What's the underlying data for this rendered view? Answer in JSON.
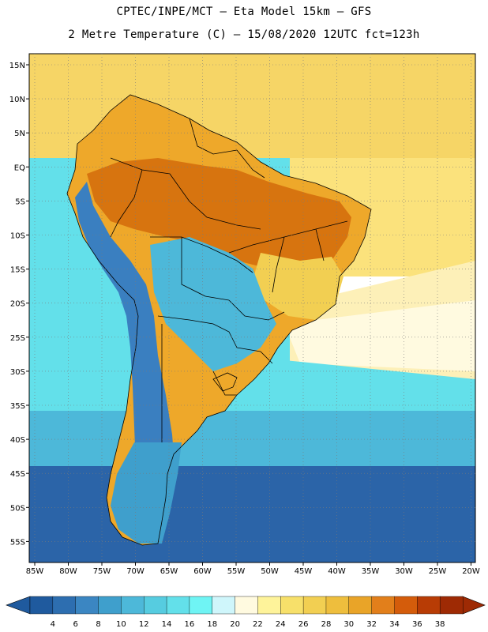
{
  "header": {
    "line1": "CPTEC/INPE/MCT –  Eta Model 15km – GFS",
    "line2": "2 Metre Temperature (C) – 15/08/2020 12UTC fct=123h"
  },
  "axes": {
    "lat_labels": [
      "15N",
      "10N",
      "5N",
      "EQ",
      "5S",
      "10S",
      "15S",
      "20S",
      "25S",
      "30S",
      "35S",
      "40S",
      "45S",
      "50S",
      "55S"
    ],
    "lon_labels": [
      "85W",
      "80W",
      "75W",
      "70W",
      "65W",
      "60W",
      "55W",
      "50W",
      "45W",
      "40W",
      "35W",
      "30W",
      "25W",
      "20W"
    ]
  },
  "colorbar": {
    "levels": [
      "4",
      "6",
      "8",
      "10",
      "12",
      "14",
      "16",
      "18",
      "20",
      "22",
      "24",
      "26",
      "28",
      "30",
      "32",
      "34",
      "36",
      "38"
    ],
    "colors": [
      "#1f5a9e",
      "#2d6eb0",
      "#3b86c2",
      "#3f9fcc",
      "#4db8d9",
      "#56cce0",
      "#63e0ea",
      "#6ff4f4",
      "#cff6fb",
      "#fffae0",
      "#fef39a",
      "#f7e06a",
      "#f2cf52",
      "#eebe3d",
      "#e9a428",
      "#e27f1b",
      "#d45c0b",
      "#b83c05",
      "#9e2a04"
    ],
    "under_color": "#1f5a9e",
    "over_color": "#9e2a04"
  },
  "map_colors": {
    "ocean_north": "#f6d566",
    "ocean_north_far": "#fbe27c",
    "subtropic_band": "#fdf0b8",
    "light_band": "#fffae0",
    "warm_cyan": "#63e0ea",
    "mid_cyan": "#4db8d9",
    "deep_blue": "#2b64a8",
    "amazon_hot": "#d7740f",
    "brazil_warm": "#eea82a",
    "highland_yellow": "#f2cf52",
    "andes_blue": "#3a7fc0",
    "patagonia": "#3f9fcc",
    "border": "#000000"
  }
}
